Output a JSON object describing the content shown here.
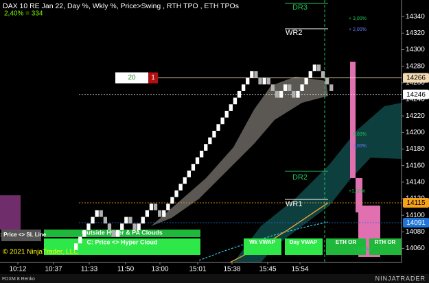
{
  "chart_data": {
    "type": "renko",
    "title": "DAX 10 RE Jan 22, Day %, Wkly %, Price>Swing  , RTH TPO , ETH TPOs",
    "subtitle": "2,40% = 334",
    "instrument": "FDXM 8 Renko",
    "copyright": "© 2021 NinjaTrader, LLC",
    "brand": "NINJATRADER",
    "start": 14058,
    "closes": [
      14066,
      14074,
      14082,
      14090,
      14098,
      14106,
      14098,
      14090,
      14082,
      14074,
      14082,
      14090,
      14098,
      14090,
      14082,
      14090,
      14098,
      14106,
      14114,
      14106,
      14098,
      14106,
      14114,
      14122,
      14130,
      14138,
      14146,
      14154,
      14162,
      14170,
      14178,
      14186,
      14194,
      14202,
      14210,
      14218,
      14226,
      14234,
      14242,
      14250,
      14258,
      14266,
      14274,
      14266,
      14258,
      14266,
      14258,
      14250,
      14242,
      14250,
      14258,
      14250,
      14242,
      14250,
      14258,
      14266,
      14274,
      14282,
      14274,
      14266,
      14258,
      14250
    ],
    "up_color": "#ffffff",
    "down_color": "#b0b0b0",
    "ylim": [
      14043,
      14360
    ],
    "yticks": [
      14060,
      14080,
      14100,
      14120,
      14140,
      14160,
      14180,
      14200,
      14220,
      14240,
      14260,
      14280,
      14300,
      14320,
      14340
    ],
    "time_labels": [
      "10:12",
      "10:37",
      "11:33",
      "11:50",
      "13:00",
      "15:01",
      "15:38",
      "15:45",
      "15:54"
    ],
    "price_markers": [
      {
        "value": 14266,
        "color": "#f3d9b1"
      },
      {
        "value": 14246,
        "color": "#ffffff"
      },
      {
        "value": 14115,
        "color": "#f7a21b"
      },
      {
        "value": 14091,
        "color": "#1f74d6"
      }
    ],
    "annotations": [
      {
        "text": "DR3",
        "color": "#22c55e"
      },
      {
        "text": "WR2",
        "color": "#ffffff"
      },
      {
        "text": "DR2",
        "color": "#22c55e"
      },
      {
        "text": "WR1",
        "color": "#ffffff"
      },
      {
        "text": "+ 3,00%",
        "color": "#22c55e"
      },
      {
        "text": "+ 2,00%",
        "color": "#6b7cff"
      },
      {
        "text": "2,00%",
        "color": "#22c55e"
      },
      {
        "text": "1,00%",
        "color": "#6b7cff"
      },
      {
        "text": "+1,00%",
        "color": "#22c55e"
      },
      {
        "text": "+ 1,00%",
        "color": "#22c55e"
      }
    ],
    "swing_box": {
      "count": "20",
      "badge": "1"
    },
    "buttons": [
      "E: Price <> SL Line",
      "Outside Hyper & PA Clouds",
      "C: Price <> Hyper Cloud",
      "Wk VWAP",
      "Day VWAP",
      "ETH OR",
      "RTH OR"
    ]
  }
}
